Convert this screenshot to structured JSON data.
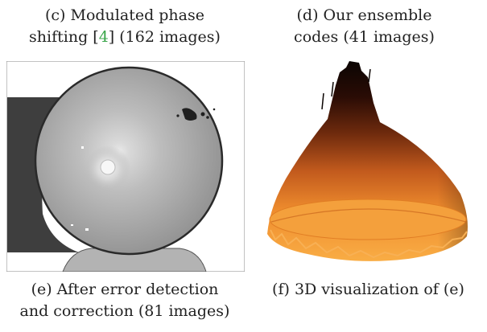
{
  "captions": {
    "c": {
      "line1": "(c) Modulated phase",
      "line2_prefix": "shifting ",
      "citation": "4",
      "line2_suffix": " (162 images)"
    },
    "d": {
      "line1": "(d) Our ensemble",
      "line2": "codes (41 images)"
    },
    "e": {
      "line1": "(e) After error detection",
      "line2": "and correction (81 images)"
    },
    "f": {
      "line1": "(f) 3D visualization of (e)"
    }
  },
  "colors": {
    "citation": "#3aa64a",
    "depth_near": "#f7a23a",
    "depth_far": "#0b0503"
  }
}
